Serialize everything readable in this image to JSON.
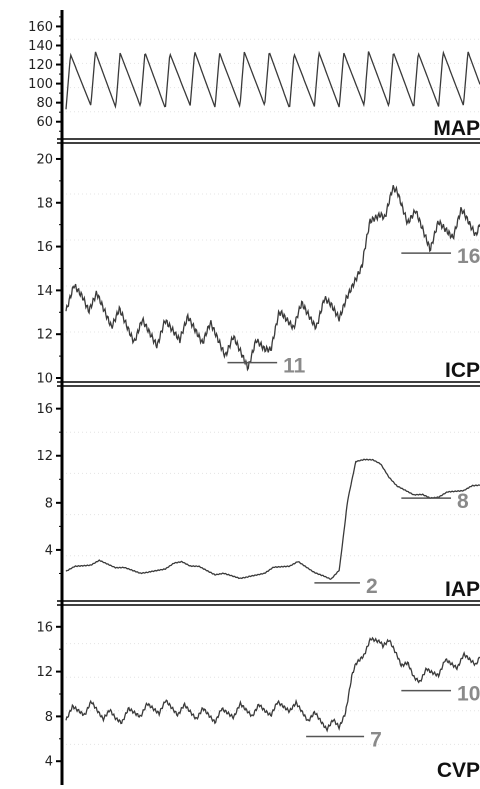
{
  "colors": {
    "trace": "#3a3a3a",
    "axis": "#000000",
    "marker_text": "#8a8a8a",
    "background": "#ffffff"
  },
  "chart_data": [
    {
      "type": "line",
      "label": "MAP",
      "ylim": [
        45,
        172
      ],
      "yticks": [
        60,
        80,
        100,
        120,
        140,
        160
      ],
      "series": [
        {
          "x": [
            0,
            6,
            12,
            18,
            24,
            30,
            36,
            42,
            48,
            54,
            60,
            66,
            72,
            78,
            84,
            90,
            96,
            100
          ],
          "y": [
            92,
            96,
            94,
            95,
            93,
            96,
            94,
            95,
            96,
            93,
            95,
            94,
            96,
            95,
            94,
            95,
            96,
            95
          ]
        }
      ],
      "markers": []
    },
    {
      "type": "line",
      "label": "ICP",
      "ylim": [
        10,
        20.5
      ],
      "yticks": [
        10,
        12,
        14,
        16,
        18,
        20
      ],
      "series": [
        {
          "x": [
            0,
            4,
            10,
            16,
            22,
            28,
            34,
            38,
            44,
            48,
            52,
            56,
            60,
            64,
            68,
            72,
            76,
            80,
            84,
            88,
            92,
            96,
            100
          ],
          "y": [
            13.6,
            13.8,
            13.0,
            12.2,
            12.0,
            12.3,
            12.1,
            11.6,
            11.0,
            11.4,
            12.6,
            12.9,
            12.8,
            13.3,
            13.2,
            16.0,
            17.7,
            18.3,
            17.2,
            16.4,
            16.8,
            17.2,
            17.0
          ]
        }
      ],
      "markers": [
        {
          "x0": 39,
          "x1": 51,
          "y": 10.7,
          "text": "11"
        },
        {
          "x0": 81,
          "x1": 93,
          "y": 15.7,
          "text": "16"
        }
      ]
    },
    {
      "type": "line",
      "label": "IAP",
      "ylim": [
        0,
        17.5
      ],
      "yticks": [
        4,
        8,
        12,
        16
      ],
      "series": [
        {
          "x": [
            0,
            8,
            14,
            20,
            28,
            36,
            44,
            50,
            56,
            60,
            62,
            64,
            66,
            68,
            70,
            72,
            76,
            80,
            84,
            88,
            92,
            100
          ],
          "y": [
            2.3,
            3.0,
            2.4,
            2.0,
            3.0,
            2.0,
            1.6,
            2.4,
            2.9,
            2.2,
            1.7,
            1.5,
            2.4,
            8.0,
            11.5,
            11.8,
            11.3,
            9.3,
            8.8,
            8.4,
            8.8,
            9.5
          ]
        }
      ],
      "markers": [
        {
          "x0": 60,
          "x1": 71,
          "y": 1.2,
          "text": "2"
        },
        {
          "x0": 81,
          "x1": 93,
          "y": 8.4,
          "text": "8"
        }
      ]
    },
    {
      "type": "line",
      "label": "CVP",
      "ylim": [
        2.5,
        17.5
      ],
      "yticks": [
        4,
        8,
        12,
        16
      ],
      "series": [
        {
          "x": [
            0,
            6,
            12,
            18,
            24,
            30,
            36,
            42,
            48,
            54,
            58,
            62,
            66,
            68,
            70,
            72,
            76,
            80,
            84,
            88,
            92,
            96,
            100
          ],
          "y": [
            8.2,
            8.8,
            7.8,
            8.5,
            8.9,
            8.4,
            8.0,
            8.6,
            8.5,
            9.0,
            8.2,
            7.5,
            7.0,
            9.5,
            12.5,
            14.0,
            15.0,
            13.6,
            11.5,
            11.8,
            12.6,
            13.0,
            13.2
          ]
        }
      ],
      "markers": [
        {
          "x0": 58,
          "x1": 72,
          "y": 6.2,
          "text": "7"
        },
        {
          "x0": 81,
          "x1": 93,
          "y": 10.3,
          "text": "10"
        }
      ]
    }
  ]
}
